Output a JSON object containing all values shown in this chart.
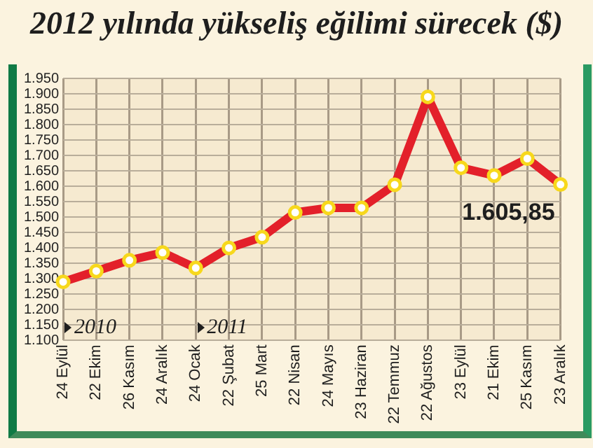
{
  "chart_data": {
    "type": "line",
    "title": "2012 yılında yükseliş eğilimi sürecek ($)",
    "categories": [
      "24 Eylül",
      "22 Ekim",
      "26 Kasım",
      "24 Aralık",
      "24 Ocak",
      "22 Şubat",
      "25 Mart",
      "22 Nisan",
      "24 Mayıs",
      "23 Haziran",
      "22 Temmuz",
      "22 Ağustos",
      "23 Eylül",
      "21 Ekim",
      "25 Kasım",
      "23 Aralık"
    ],
    "series": [
      {
        "color": "#e3202a",
        "values": [
          1290,
          1325,
          1360,
          1385,
          1335,
          1400,
          1435,
          1515,
          1530,
          1530,
          1605,
          1890,
          1660,
          1635,
          1690,
          1605.85
        ]
      }
    ],
    "ylim": [
      1100,
      1950
    ],
    "yticks": [
      {
        "value": 1100,
        "label": "1.100"
      },
      {
        "value": 1150,
        "label": "1.150"
      },
      {
        "value": 1200,
        "label": "1.200"
      },
      {
        "value": 1250,
        "label": "1.250"
      },
      {
        "value": 1300,
        "label": "1.300"
      },
      {
        "value": 1350,
        "label": "1.350"
      },
      {
        "value": 1400,
        "label": "1.400"
      },
      {
        "value": 1450,
        "label": "1.450"
      },
      {
        "value": 1500,
        "label": "1.500"
      },
      {
        "value": 1550,
        "label": "1.550"
      },
      {
        "value": 1600,
        "label": "1.600"
      },
      {
        "value": 1650,
        "label": "1.650"
      },
      {
        "value": 1700,
        "label": "1.700"
      },
      {
        "value": 1750,
        "label": "1.750"
      },
      {
        "value": 1800,
        "label": "1.800"
      },
      {
        "value": 1850,
        "label": "1.850"
      },
      {
        "value": 1900,
        "label": "1.900"
      },
      {
        "value": 1950,
        "label": "1.950"
      }
    ],
    "annotations": [
      {
        "text": "1.605,85",
        "x": "23 Aralık",
        "y": 1605.85
      },
      "2010",
      "2011"
    ],
    "grid": true,
    "marker": "circle",
    "line_style": "solid",
    "legend": false
  }
}
